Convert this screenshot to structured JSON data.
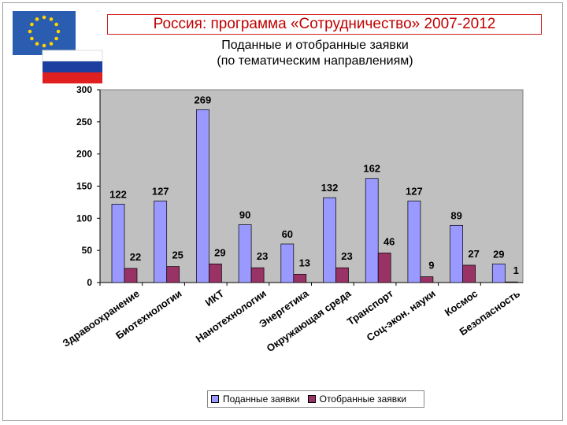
{
  "title": "Россия: программа «Сотрудничество» 2007-2012",
  "subtitle_line1": "Поданные и отобранные заявки",
  "subtitle_line2": "(по тематическим  направлениям)",
  "colors": {
    "submitted": "#9999ff",
    "selected": "#993366",
    "plot_bg": "#c0c0c0",
    "title": "#c00000",
    "eu_blue": "#2a5db0",
    "eu_star": "#ffd200",
    "ru_white": "#ffffff",
    "ru_blue": "#1c3fa0",
    "ru_red": "#e02020"
  },
  "chart_data": {
    "type": "bar",
    "categories": [
      "Здравоохранение",
      "Биотехнологии",
      "ИКТ",
      "Нанотехнологии",
      "Энергетика",
      "Окружающая среда",
      "Транспорт",
      "Соц-экон. науки",
      "Космос",
      "Безопасность"
    ],
    "series": [
      {
        "name": "Поданные заявки",
        "values": [
          122,
          127,
          269,
          90,
          60,
          132,
          162,
          127,
          89,
          29
        ]
      },
      {
        "name": "Отобранные заявки",
        "values": [
          22,
          25,
          29,
          23,
          13,
          23,
          46,
          9,
          27,
          1
        ]
      }
    ],
    "yticks": [
      "0",
      "50",
      "100",
      "150",
      "200",
      "250",
      "300"
    ],
    "ylim": [
      0,
      300
    ],
    "grid": false,
    "legend_position": "bottom"
  }
}
